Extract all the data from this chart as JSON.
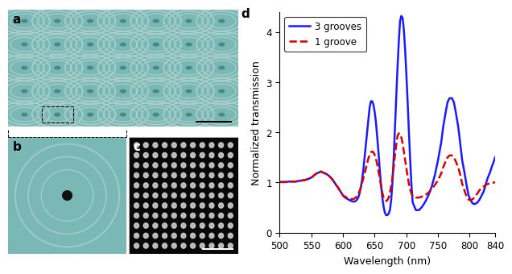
{
  "panel_d": {
    "xlim": [
      500,
      840
    ],
    "ylim": [
      0,
      4.4
    ],
    "xlabel": "Wavelength (nm)",
    "ylabel": "Normalized transmission",
    "xticks": [
      500,
      550,
      600,
      650,
      700,
      750,
      800,
      840
    ],
    "yticks": [
      0,
      1,
      2,
      3,
      4
    ],
    "legend_labels": [
      "3 grooves",
      "1 groove"
    ],
    "blue_color": "#1a1aff",
    "red_color": "#dd0000",
    "blue_linewidth": 1.8,
    "red_linewidth": 1.8,
    "blue_x": [
      500,
      505,
      510,
      515,
      520,
      525,
      530,
      535,
      540,
      545,
      550,
      555,
      558,
      562,
      565,
      568,
      572,
      575,
      578,
      582,
      585,
      588,
      592,
      595,
      598,
      600,
      603,
      606,
      610,
      613,
      616,
      618,
      620,
      622,
      624,
      626,
      628,
      630,
      632,
      634,
      636,
      638,
      640,
      642,
      644,
      646,
      648,
      650,
      652,
      654,
      656,
      658,
      660,
      662,
      664,
      666,
      668,
      670,
      672,
      674,
      676,
      678,
      680,
      682,
      684,
      686,
      688,
      690,
      692,
      694,
      696,
      698,
      700,
      702,
      704,
      706,
      708,
      710,
      715,
      720,
      725,
      730,
      735,
      740,
      745,
      750,
      755,
      758,
      762,
      765,
      768,
      772,
      775,
      778,
      782,
      785,
      788,
      792,
      795,
      798,
      802,
      805,
      808,
      812,
      815,
      818,
      822,
      825,
      828,
      832,
      835,
      838,
      840
    ],
    "blue_y": [
      1.01,
      1.01,
      1.01,
      1.02,
      1.02,
      1.02,
      1.03,
      1.04,
      1.05,
      1.07,
      1.1,
      1.15,
      1.18,
      1.2,
      1.22,
      1.2,
      1.18,
      1.16,
      1.13,
      1.08,
      1.03,
      0.97,
      0.9,
      0.84,
      0.78,
      0.74,
      0.7,
      0.68,
      0.65,
      0.63,
      0.62,
      0.62,
      0.63,
      0.66,
      0.7,
      0.78,
      0.9,
      1.05,
      1.25,
      1.5,
      1.75,
      2.0,
      2.25,
      2.5,
      2.62,
      2.62,
      2.55,
      2.4,
      2.2,
      1.9,
      1.6,
      1.25,
      0.95,
      0.7,
      0.52,
      0.4,
      0.35,
      0.35,
      0.38,
      0.45,
      0.65,
      1.0,
      1.5,
      2.1,
      2.7,
      3.3,
      3.8,
      4.22,
      4.32,
      4.28,
      4.05,
      3.65,
      3.15,
      2.6,
      2.0,
      1.45,
      0.95,
      0.6,
      0.45,
      0.45,
      0.52,
      0.62,
      0.75,
      0.92,
      1.15,
      1.45,
      1.8,
      2.1,
      2.4,
      2.6,
      2.68,
      2.68,
      2.6,
      2.4,
      2.1,
      1.78,
      1.45,
      1.18,
      0.95,
      0.75,
      0.63,
      0.58,
      0.57,
      0.6,
      0.65,
      0.72,
      0.82,
      0.95,
      1.08,
      1.2,
      1.32,
      1.42,
      1.5
    ],
    "red_x": [
      500,
      505,
      510,
      515,
      520,
      525,
      530,
      535,
      540,
      545,
      550,
      555,
      558,
      562,
      565,
      568,
      572,
      575,
      578,
      582,
      585,
      588,
      592,
      595,
      598,
      600,
      603,
      606,
      610,
      613,
      616,
      618,
      620,
      622,
      624,
      626,
      628,
      630,
      632,
      634,
      636,
      638,
      640,
      642,
      644,
      646,
      648,
      650,
      652,
      654,
      656,
      658,
      660,
      662,
      664,
      666,
      668,
      670,
      672,
      674,
      676,
      678,
      680,
      682,
      684,
      686,
      688,
      690,
      692,
      694,
      696,
      698,
      700,
      702,
      704,
      706,
      708,
      710,
      715,
      720,
      725,
      730,
      735,
      740,
      745,
      750,
      755,
      758,
      762,
      765,
      768,
      772,
      775,
      778,
      782,
      785,
      788,
      792,
      795,
      798,
      802,
      805,
      808,
      812,
      815,
      818,
      822,
      825,
      828,
      832,
      835,
      838,
      840
    ],
    "red_y": [
      1.01,
      1.01,
      1.01,
      1.02,
      1.02,
      1.02,
      1.03,
      1.04,
      1.05,
      1.07,
      1.1,
      1.15,
      1.18,
      1.2,
      1.22,
      1.2,
      1.18,
      1.16,
      1.13,
      1.08,
      1.03,
      0.97,
      0.9,
      0.84,
      0.78,
      0.74,
      0.72,
      0.7,
      0.68,
      0.67,
      0.67,
      0.68,
      0.7,
      0.73,
      0.77,
      0.83,
      0.9,
      0.99,
      1.08,
      1.18,
      1.28,
      1.38,
      1.48,
      1.55,
      1.6,
      1.62,
      1.6,
      1.55,
      1.47,
      1.36,
      1.22,
      1.08,
      0.93,
      0.8,
      0.7,
      0.65,
      0.63,
      0.65,
      0.7,
      0.8,
      0.94,
      1.1,
      1.3,
      1.55,
      1.75,
      1.93,
      1.98,
      1.97,
      1.9,
      1.78,
      1.62,
      1.45,
      1.28,
      1.12,
      0.97,
      0.86,
      0.78,
      0.73,
      0.7,
      0.7,
      0.72,
      0.75,
      0.8,
      0.87,
      0.95,
      1.05,
      1.18,
      1.3,
      1.42,
      1.5,
      1.54,
      1.54,
      1.5,
      1.42,
      1.3,
      1.15,
      0.98,
      0.83,
      0.72,
      0.66,
      0.65,
      0.67,
      0.72,
      0.78,
      0.84,
      0.88,
      0.92,
      0.95,
      0.97,
      0.98,
      0.99,
      1.0,
      1.0
    ]
  },
  "panel_a_bg": "#7ab8b5",
  "panel_a_ring_color": "#a8ceca",
  "panel_a_dot_color": "#4a8885",
  "panel_b_bg": "#7ab8b5",
  "panel_b_ring_color": "#9ccac7",
  "panel_b_center_color": "#111111",
  "panel_c_bg": "#080808",
  "panel_c_dot_color": "#cccccc",
  "label_fontsize": 11,
  "axis_fontsize": 9,
  "tick_fontsize": 8.5
}
